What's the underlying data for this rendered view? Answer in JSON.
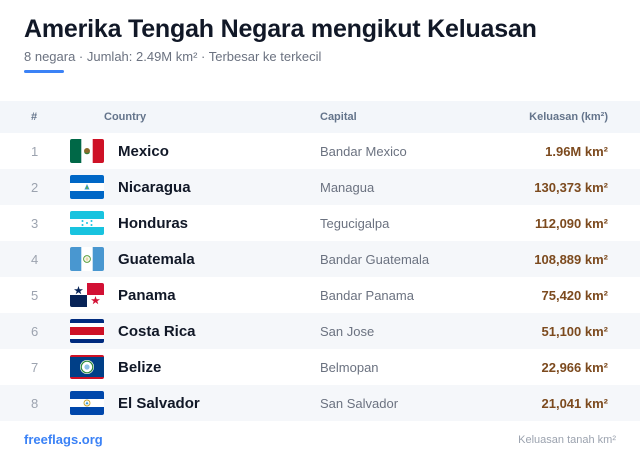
{
  "header": {
    "title": "Amerika Tengah Negara mengikut Keluasan",
    "subtitle": "8 negara · Jumlah: 2.49M km² · Terbesar ke terkecil"
  },
  "columns": {
    "num": "#",
    "country": "Country",
    "capital": "Capital",
    "area": "Keluasan (km²)"
  },
  "rows": [
    {
      "rank": "1",
      "country": "Mexico",
      "capital": "Bandar Mexico",
      "area": "1.96M km²",
      "flag": "mexico-flag-icon"
    },
    {
      "rank": "2",
      "country": "Nicaragua",
      "capital": "Managua",
      "area": "130,373 km²",
      "flag": "nicaragua-flag-icon"
    },
    {
      "rank": "3",
      "country": "Honduras",
      "capital": "Tegucigalpa",
      "area": "112,090 km²",
      "flag": "honduras-flag-icon"
    },
    {
      "rank": "4",
      "country": "Guatemala",
      "capital": "Bandar Guatemala",
      "area": "108,889 km²",
      "flag": "guatemala-flag-icon"
    },
    {
      "rank": "5",
      "country": "Panama",
      "capital": "Bandar Panama",
      "area": "75,420 km²",
      "flag": "panama-flag-icon"
    },
    {
      "rank": "6",
      "country": "Costa Rica",
      "capital": "San Jose",
      "area": "51,100 km²",
      "flag": "costa-rica-flag-icon"
    },
    {
      "rank": "7",
      "country": "Belize",
      "capital": "Belmopan",
      "area": "22,966 km²",
      "flag": "belize-flag-icon"
    },
    {
      "rank": "8",
      "country": "El Salvador",
      "capital": "San Salvador",
      "area": "21,041 km²",
      "flag": "el-salvador-flag-icon"
    }
  ],
  "footer": {
    "brand": "freeflags.org",
    "note": "Keluasan tanah km²"
  },
  "colors": {
    "accent": "#3b82f6",
    "area_text": "#7c4a1e",
    "row_alt": "#f5f7fa"
  }
}
